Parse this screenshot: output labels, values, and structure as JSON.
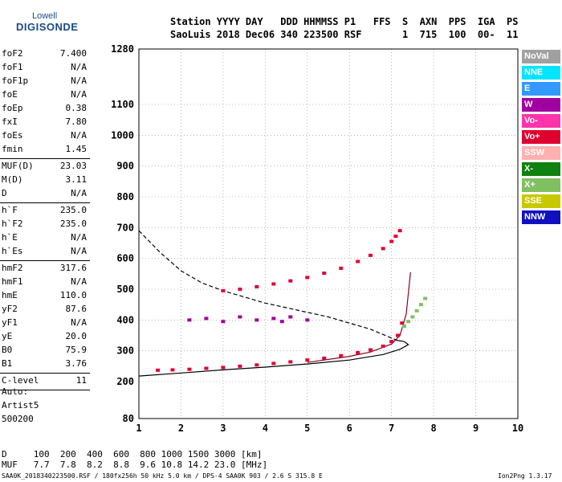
{
  "logo": {
    "top": "Lowell",
    "main": "DIGISONDE"
  },
  "header": {
    "line1": "Station YYYY DAY   DDD HHMMSS P1   FFS  S  AXN  PPS  IGA  PS",
    "line2": "SaoLuis 2018 Dec06 340 223500 RSF       1  715  100  00-  11"
  },
  "params_group1": [
    {
      "k": "foF2",
      "v": "7.400"
    },
    {
      "k": "foF1",
      "v": "N/A"
    },
    {
      "k": "foF1p",
      "v": "N/A"
    },
    {
      "k": "foE",
      "v": "N/A"
    },
    {
      "k": "foEp",
      "v": "0.38"
    },
    {
      "k": "fxI",
      "v": "7.80"
    },
    {
      "k": "foEs",
      "v": "N/A"
    },
    {
      "k": "fmin",
      "v": "1.45"
    }
  ],
  "params_group2": [
    {
      "k": "MUF(D)",
      "v": "23.03"
    },
    {
      "k": "M(D)",
      "v": "3.11"
    },
    {
      "k": "D",
      "v": "N/A"
    }
  ],
  "params_group3": [
    {
      "k": "h`F",
      "v": "235.0"
    },
    {
      "k": "h`F2",
      "v": "235.0"
    },
    {
      "k": "h`E",
      "v": "N/A"
    },
    {
      "k": "h`Es",
      "v": "N/A"
    }
  ],
  "params_group4": [
    {
      "k": "hmF2",
      "v": "317.6"
    },
    {
      "k": "hmF1",
      "v": "N/A"
    },
    {
      "k": "hmE",
      "v": "110.0"
    },
    {
      "k": "yF2",
      "v": "87.6"
    },
    {
      "k": "yF1",
      "v": "N/A"
    },
    {
      "k": "yE",
      "v": "20.0"
    },
    {
      "k": "B0",
      "v": "75.9"
    },
    {
      "k": "B1",
      "v": "3.76"
    }
  ],
  "params_group5": [
    {
      "k": "C-level",
      "v": "11"
    }
  ],
  "autoscaling": {
    "line1": "Auto:",
    "line2": "Artist5",
    "line3": "500200"
  },
  "legend": [
    {
      "label": "NoVal",
      "color": "#a0a0a0"
    },
    {
      "label": "NNE",
      "color": "#00e5ff"
    },
    {
      "label": "E",
      "color": "#3399ff"
    },
    {
      "label": "W",
      "color": "#a000a0"
    },
    {
      "label": "Vo-",
      "color": "#ff33aa"
    },
    {
      "label": "Vo+",
      "color": "#e00030"
    },
    {
      "label": "SSW",
      "color": "#ffb0b0"
    },
    {
      "label": "X-",
      "color": "#108010"
    },
    {
      "label": "X+",
      "color": "#80c060"
    },
    {
      "label": "SSE",
      "color": "#c8c800"
    },
    {
      "label": "NNW",
      "color": "#1010c0"
    }
  ],
  "muf_table": {
    "row1": "D     100  200  400  600  800 1000 1500 3000 [km]",
    "row2": "MUF   7.7  7.8  8.2  8.8  9.6 10.8 14.2 23.0 [MHz]"
  },
  "footer": {
    "left": "SAA0K_2018340223500.RSF / 180fx256h 50 kHz 5.0 km / DPS-4 SAA0K 903 / 2.6 S 315.8 E",
    "right": "Ion2Png 1.3.17"
  },
  "chart_data": {
    "type": "scatter",
    "title": "",
    "xlabel": "",
    "ylabel": "",
    "xlim": [
      1,
      10
    ],
    "ylim": [
      80,
      1280
    ],
    "x_ticks": [
      1,
      2,
      3,
      4,
      5,
      6,
      7,
      8,
      9,
      10
    ],
    "y_ticks": [
      80,
      200,
      300,
      400,
      500,
      600,
      700,
      800,
      900,
      1000,
      1100,
      1280
    ],
    "grid": "dotted",
    "series": [
      {
        "color": "#e00030",
        "x": [
          1.45,
          1.8,
          2.2,
          2.6,
          3.0,
          3.4,
          3.8,
          4.2,
          4.6,
          5.0,
          5.4,
          5.8,
          6.2,
          6.5,
          6.8,
          7.0,
          7.15,
          7.25
        ],
        "y": [
          237,
          238,
          240,
          243,
          246,
          250,
          254,
          259,
          264,
          270,
          276,
          284,
          294,
          303,
          315,
          330,
          350,
          390
        ]
      },
      {
        "color": "#80c060",
        "x": [
          7.3,
          7.4,
          7.5,
          7.6,
          7.7,
          7.8
        ],
        "y": [
          380,
          395,
          410,
          430,
          450,
          470
        ]
      },
      {
        "color": "#e00030",
        "x": [
          3.0,
          3.4,
          3.8,
          4.2,
          4.6,
          5.0,
          5.4,
          5.8,
          6.2,
          6.5,
          6.8,
          7.0,
          7.1,
          7.2
        ],
        "y": [
          495,
          500,
          508,
          517,
          527,
          538,
          552,
          568,
          590,
          610,
          632,
          655,
          672,
          690
        ]
      },
      {
        "color": "#a000a0",
        "x": [
          2.2,
          2.6,
          3.0,
          3.4,
          3.8,
          4.2,
          4.4,
          4.6,
          5.0
        ],
        "y": [
          400,
          405,
          395,
          410,
          400,
          405,
          395,
          410,
          400
        ]
      }
    ],
    "curves": [
      {
        "style": "solid",
        "color": "#000000",
        "x": [
          1.0,
          2.0,
          3.0,
          4.0,
          5.0,
          6.0,
          6.8,
          7.2,
          7.4,
          7.3,
          7.1
        ],
        "y": [
          218,
          228,
          238,
          247,
          257,
          270,
          288,
          305,
          320,
          330,
          335
        ]
      },
      {
        "style": "solid",
        "color": "#8b0020",
        "x": [
          5.0,
          6.0,
          6.5,
          7.0,
          7.2,
          7.35,
          7.45
        ],
        "y": [
          262,
          282,
          296,
          322,
          350,
          420,
          555
        ]
      },
      {
        "style": "dashed",
        "color": "#000000",
        "x": [
          1.0,
          1.5,
          2.0,
          2.5,
          3.0,
          3.5,
          4.0,
          4.5,
          5.0,
          5.5,
          6.0,
          6.5,
          7.2
        ],
        "y": [
          690,
          620,
          560,
          520,
          495,
          475,
          455,
          440,
          425,
          410,
          390,
          370,
          330
        ]
      }
    ]
  }
}
